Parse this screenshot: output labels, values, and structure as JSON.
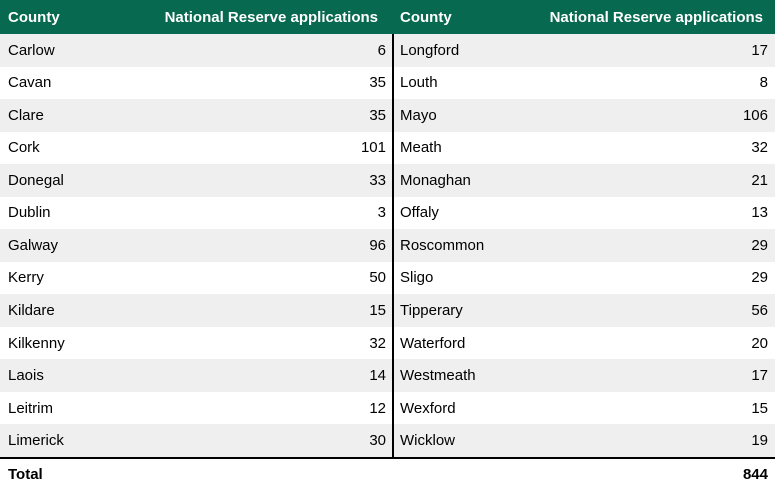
{
  "table": {
    "header": {
      "county_label": "County",
      "apps_label": "National Reserve applications"
    },
    "left_rows": [
      {
        "county": "Carlow",
        "value": "6"
      },
      {
        "county": "Cavan",
        "value": "35"
      },
      {
        "county": "Clare",
        "value": "35"
      },
      {
        "county": "Cork",
        "value": "101"
      },
      {
        "county": "Donegal",
        "value": "33"
      },
      {
        "county": "Dublin",
        "value": "3"
      },
      {
        "county": "Galway",
        "value": "96"
      },
      {
        "county": "Kerry",
        "value": "50"
      },
      {
        "county": "Kildare",
        "value": "15"
      },
      {
        "county": "Kilkenny",
        "value": "32"
      },
      {
        "county": "Laois",
        "value": "14"
      },
      {
        "county": "Leitrim",
        "value": "12"
      },
      {
        "county": "Limerick",
        "value": "30"
      }
    ],
    "right_rows": [
      {
        "county": "Longford",
        "value": "17"
      },
      {
        "county": "Louth",
        "value": "8"
      },
      {
        "county": "Mayo",
        "value": "106"
      },
      {
        "county": "Meath",
        "value": "32"
      },
      {
        "county": "Monaghan",
        "value": "21"
      },
      {
        "county": "Offaly",
        "value": "13"
      },
      {
        "county": "Roscommon",
        "value": "29"
      },
      {
        "county": "Sligo",
        "value": "29"
      },
      {
        "county": "Tipperary",
        "value": "56"
      },
      {
        "county": "Waterford",
        "value": "20"
      },
      {
        "county": "Westmeath",
        "value": "17"
      },
      {
        "county": "Wexford",
        "value": "15"
      },
      {
        "county": "Wicklow",
        "value": "19"
      }
    ],
    "total_label": "Total",
    "total_value": "844"
  },
  "colors": {
    "header_bg": "#07694F",
    "header_text": "#FFFFFF",
    "band_row": "#EFEFEF",
    "plain_row": "#FFFFFF",
    "divider": "#000000",
    "body_text": "#000000"
  },
  "chart_data": {
    "type": "table",
    "columns": [
      "County",
      "National Reserve applications"
    ],
    "rows": [
      [
        "Carlow",
        6
      ],
      [
        "Cavan",
        35
      ],
      [
        "Clare",
        35
      ],
      [
        "Cork",
        101
      ],
      [
        "Donegal",
        33
      ],
      [
        "Dublin",
        3
      ],
      [
        "Galway",
        96
      ],
      [
        "Kerry",
        50
      ],
      [
        "Kildare",
        15
      ],
      [
        "Kilkenny",
        32
      ],
      [
        "Laois",
        14
      ],
      [
        "Leitrim",
        12
      ],
      [
        "Limerick",
        30
      ],
      [
        "Longford",
        17
      ],
      [
        "Louth",
        8
      ],
      [
        "Mayo",
        106
      ],
      [
        "Meath",
        32
      ],
      [
        "Monaghan",
        21
      ],
      [
        "Offaly",
        13
      ],
      [
        "Roscommon",
        29
      ],
      [
        "Sligo",
        29
      ],
      [
        "Tipperary",
        56
      ],
      [
        "Waterford",
        20
      ],
      [
        "Westmeath",
        17
      ],
      [
        "Wexford",
        15
      ],
      [
        "Wicklow",
        19
      ]
    ],
    "total": 844,
    "layout": "two column-pairs side by side, banded rows, bold total row"
  }
}
